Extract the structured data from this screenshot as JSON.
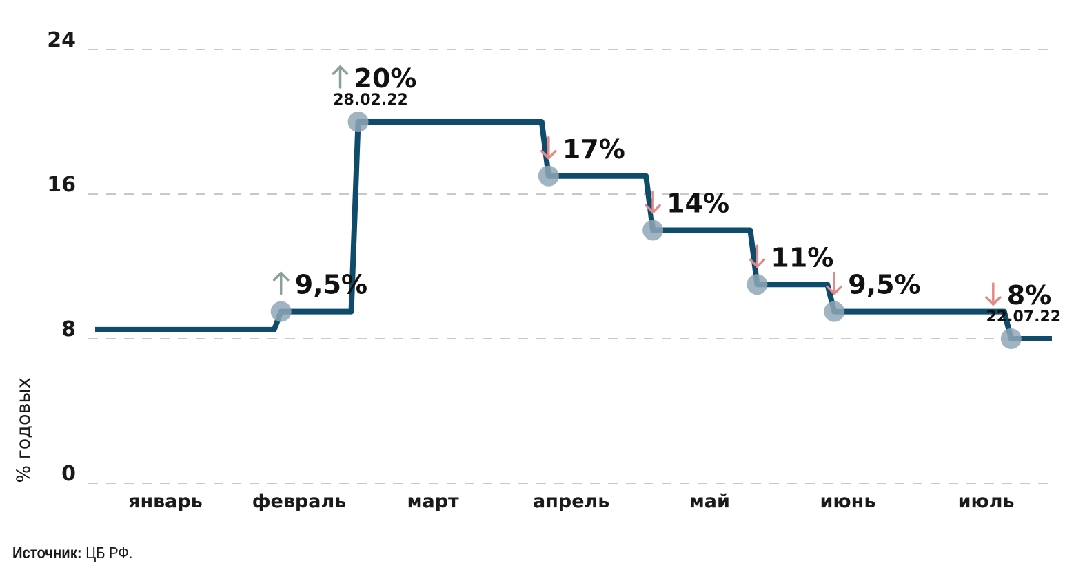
{
  "chart_data": {
    "type": "line",
    "step": true,
    "ylabel": "% годовых",
    "ylim": [
      0,
      24
    ],
    "yticks": [
      "0",
      "8",
      "16",
      "24"
    ],
    "grid": true,
    "months": [
      "январь",
      "февраль",
      "март",
      "апрель",
      "май",
      "июнь",
      "июль"
    ],
    "series": [
      {
        "values": [
          {
            "x": "2022-01-01",
            "y": 8.5
          },
          {
            "x": "2022-02-11",
            "y": 9.5
          },
          {
            "x": "2022-02-28",
            "y": 20
          },
          {
            "x": "2022-04-11",
            "y": 17
          },
          {
            "x": "2022-05-04",
            "y": 14
          },
          {
            "x": "2022-05-27",
            "y": 11
          },
          {
            "x": "2022-06-13",
            "y": 9.5
          },
          {
            "x": "2022-07-22",
            "y": 8
          },
          {
            "x": "2022-07-31",
            "y": 8
          }
        ]
      }
    ],
    "annotations": [
      {
        "x": "2022-02-11",
        "y": 9.5,
        "label": "9,5%",
        "direction": "up",
        "date": ""
      },
      {
        "x": "2022-02-28",
        "y": 20,
        "label": "20%",
        "direction": "up",
        "date": "28.02.22"
      },
      {
        "x": "2022-04-11",
        "y": 17,
        "label": "17%",
        "direction": "down",
        "date": ""
      },
      {
        "x": "2022-05-04",
        "y": 14,
        "label": "14%",
        "direction": "down",
        "date": ""
      },
      {
        "x": "2022-05-27",
        "y": 11,
        "label": "11%",
        "direction": "down",
        "date": ""
      },
      {
        "x": "2022-06-13",
        "y": 9.5,
        "label": "9,5%",
        "direction": "down",
        "date": ""
      },
      {
        "x": "2022-07-22",
        "y": 8,
        "label": "8%",
        "direction": "down",
        "date": "22.07.22"
      }
    ],
    "colors": {
      "line": "#0f4b6a",
      "marker": "#8fa7b7",
      "grid": "#c8c8c8",
      "arrow_up": "#8aa19b",
      "arrow_down": "#e08a8a"
    }
  },
  "source": {
    "label": "Источник:",
    "text": "ЦБ РФ."
  }
}
